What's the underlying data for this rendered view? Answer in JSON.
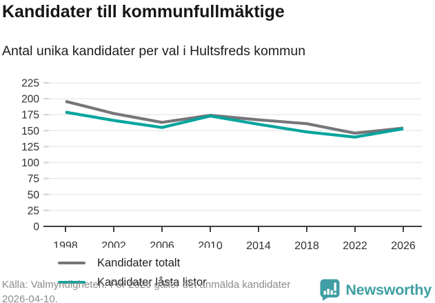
{
  "header": {
    "title": "Kandidater till kommunfullmäktige",
    "subtitle": "Antal unika kandidater per val i Hultsfreds kommun"
  },
  "chart_data": {
    "type": "line",
    "x": [
      "1998",
      "2002",
      "2006",
      "2010",
      "2014",
      "2018",
      "2022",
      "2026"
    ],
    "series": [
      {
        "name": "Kandidater totalt",
        "color": "#75757a",
        "values": [
          196,
          177,
          163,
          174,
          167,
          161,
          146,
          154
        ]
      },
      {
        "name": "Kandidater låsta listor",
        "color": "#00a49c",
        "values": [
          179,
          166,
          155,
          173,
          160,
          148,
          140,
          153
        ]
      }
    ],
    "title": "Kandidater till kommunfullmäktige",
    "subtitle": "Antal unika kandidater per val i Hultsfreds kommun",
    "xlabel": "",
    "ylabel": "",
    "ylim": [
      0,
      225
    ],
    "ytick_step": 25,
    "grid": true,
    "legend_position": "inside-bottom-left",
    "colors": {
      "gridline": "#e7e7e7",
      "axis": "#3f3f3f",
      "tick_label": "#2e2e2e"
    }
  },
  "footer": {
    "source": "Källa: Valmyndigheten. För 2026 gäller det anmälda kandidater 2026-04-10.",
    "brand": "Newsworthy",
    "brand_color": "#3f9ea3"
  }
}
